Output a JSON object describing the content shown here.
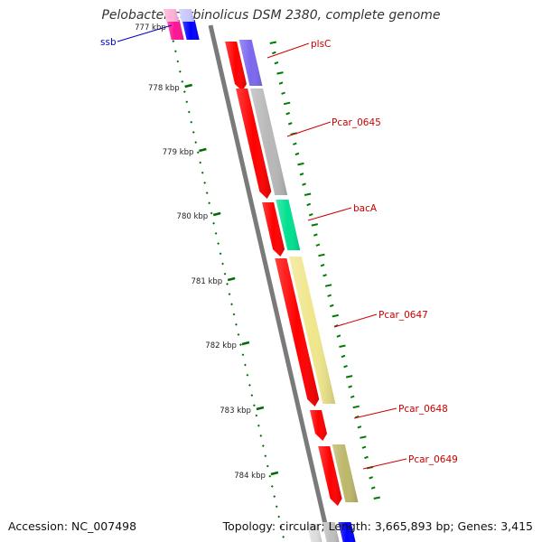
{
  "title": "Pelobacter carbinolicus DSM 2380, complete genome",
  "accession": "Accession: NC_007498",
  "summary": "Topology: circular; Length: 3,665,893 bp; Genes: 3,415",
  "colors": {
    "backbone": "#7a7a7a",
    "cds": "#ff0000",
    "label_cds": "#cc0000",
    "label_other": "#0000cc",
    "ticks": "#007a00",
    "scale_ticks": "#006b00"
  },
  "scale": {
    "unit": "kbp",
    "labels": [
      "777 kbp",
      "778 kbp",
      "779 kbp",
      "780 kbp",
      "781 kbp",
      "782 kbp",
      "783 kbp",
      "784 kbp"
    ]
  },
  "genes": [
    {
      "name": "ssb",
      "color": "#ff1493",
      "cog_color": "#0000ff",
      "label_color": "#0000cc"
    },
    {
      "name": "plsC",
      "color": "#ff0000",
      "cog_color": "#7b68ee",
      "label_color": "#cc0000"
    },
    {
      "name": "Pcar_0645",
      "color": "#ff0000",
      "cog_color": "#b8b8b8",
      "label_color": "#cc0000"
    },
    {
      "name": "bacA",
      "color": "#ff0000",
      "cog_color": "#00e08f",
      "label_color": "#cc0000"
    },
    {
      "name": "Pcar_0647",
      "color": "#ff0000",
      "cog_color": "#f0e68c",
      "label_color": "#cc0000"
    },
    {
      "name": "Pcar_0648",
      "color": "#ff0000",
      "cog_color": "",
      "label_color": "#cc0000"
    },
    {
      "name": "Pcar_0649",
      "color": "#ff0000",
      "cog_color": "#bdb76b",
      "label_color": "#cc0000"
    }
  ]
}
